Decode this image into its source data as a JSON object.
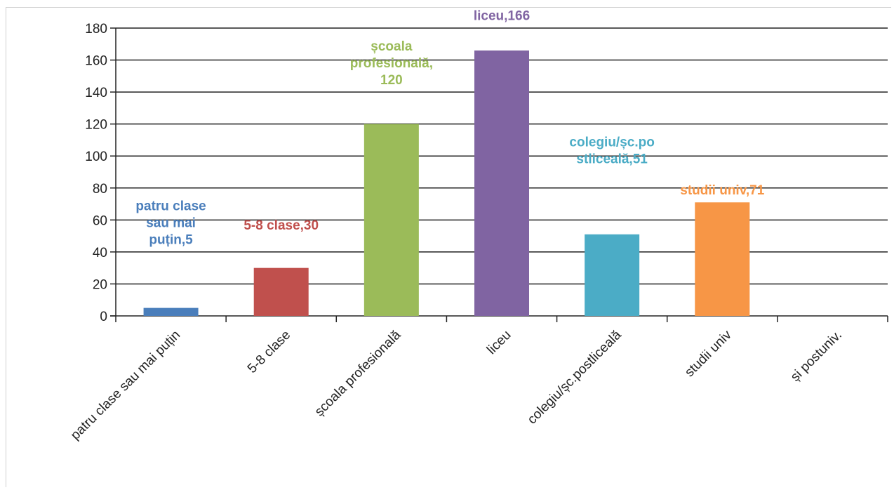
{
  "chart_data": {
    "type": "bar",
    "categories": [
      "patru clase sau mai puțin",
      "5-8 clase",
      "școala profesională",
      "liceu",
      "colegiu/șc.postliceală",
      "studii univ",
      "și postuniv."
    ],
    "values": [
      5,
      30,
      120,
      166,
      51,
      71,
      null
    ],
    "colors": [
      "#4a7ebb",
      "#c0504d",
      "#9bbb59",
      "#8064a2",
      "#4bacc6",
      "#f79646",
      "#999999"
    ],
    "data_labels": [
      [
        "patru clase",
        "sau mai",
        "puțin,5"
      ],
      [
        "5-8 clase,30"
      ],
      [
        "școala",
        "profesională,",
        "120"
      ],
      [
        "liceu,166"
      ],
      [
        "colegiu/șc.po",
        "stliceală,51"
      ],
      [
        "studii univ,71"
      ],
      []
    ],
    "yticks": [
      "0",
      "20",
      "40",
      "60",
      "80",
      "100",
      "120",
      "140",
      "160",
      "180"
    ],
    "ylim": [
      0,
      180
    ],
    "grid": true,
    "legend": "none",
    "title": "",
    "xlabel": "",
    "ylabel": ""
  }
}
